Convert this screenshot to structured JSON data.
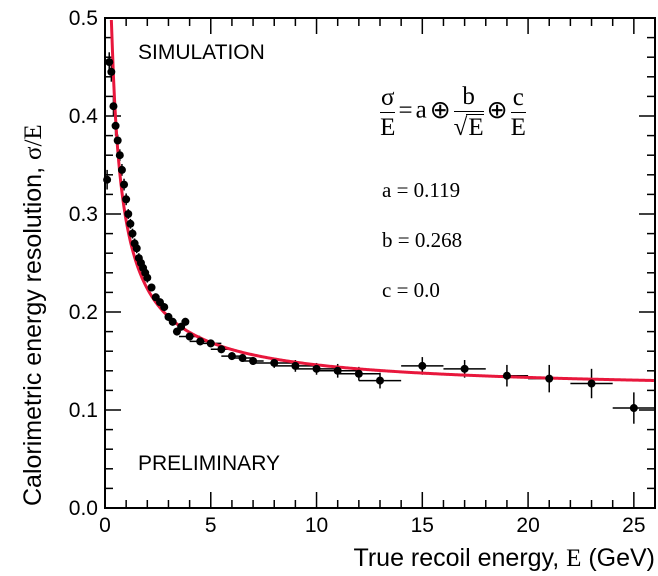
{
  "chart_data": {
    "type": "scatter",
    "xlabel_prefix": "True recoil energy, ",
    "xlabel_symbol": "E",
    "xlabel_unit": " (GeV)",
    "ylabel_prefix": "Calorimetric energy resolution, ",
    "ylabel_symbol": "σ/E",
    "xlim": [
      0,
      26
    ],
    "ylim": [
      0.0,
      0.5
    ],
    "x_ticks": [
      "0",
      "5",
      "10",
      "15",
      "20",
      "25"
    ],
    "y_ticks": [
      "0.0",
      "0.1",
      "0.2",
      "0.3",
      "0.4",
      "0.5"
    ],
    "grid": false,
    "annotations": {
      "top_label": "SIMULATION",
      "bottom_label": "PRELIMINARY",
      "formula": {
        "lhs_num": "σ",
        "lhs_den": "E",
        "equals": "=",
        "term_a": "a",
        "oplus": "⊕",
        "b_num": "b",
        "b_den": "E",
        "c_num": "c",
        "c_den": "E"
      },
      "param_a": "a = 0.119",
      "param_b": "b = 0.268",
      "param_c": "c = 0.0"
    },
    "series": [
      {
        "x": [
          0.1,
          0.2,
          0.3,
          0.4,
          0.5,
          0.6,
          0.7,
          0.8,
          0.9,
          1.0,
          1.1,
          1.2,
          1.3,
          1.4,
          1.5,
          1.6,
          1.7,
          1.8,
          1.9,
          2.0,
          2.2,
          2.4,
          2.6,
          2.8,
          3.0,
          3.2,
          3.4,
          3.6,
          3.8,
          4.0,
          4.5,
          5.0,
          5.5,
          6.0,
          6.5,
          7.0,
          8.0,
          9.0,
          10.0,
          11.0,
          12.0,
          13.0,
          15.0,
          17.0,
          19.0,
          21.0,
          23.0,
          25.0
        ],
        "y": [
          0.335,
          0.455,
          0.445,
          0.41,
          0.39,
          0.375,
          0.36,
          0.345,
          0.33,
          0.315,
          0.3,
          0.29,
          0.28,
          0.27,
          0.265,
          0.255,
          0.25,
          0.245,
          0.24,
          0.235,
          0.225,
          0.215,
          0.21,
          0.205,
          0.195,
          0.19,
          0.18,
          0.185,
          0.19,
          0.175,
          0.17,
          0.168,
          0.162,
          0.155,
          0.153,
          0.15,
          0.148,
          0.145,
          0.142,
          0.14,
          0.137,
          0.13,
          0.145,
          0.142,
          0.135,
          0.132,
          0.127,
          0.102
        ],
        "yerr": [
          0.01,
          0.01,
          0.01,
          0.01,
          0.01,
          0.006,
          0.006,
          0.006,
          0.006,
          0.006,
          0.005,
          0.005,
          0.005,
          0.005,
          0.005,
          0.005,
          0.005,
          0.005,
          0.005,
          0.005,
          0.004,
          0.004,
          0.004,
          0.004,
          0.004,
          0.004,
          0.004,
          0.004,
          0.004,
          0.004,
          0.004,
          0.004,
          0.004,
          0.004,
          0.004,
          0.004,
          0.005,
          0.006,
          0.006,
          0.007,
          0.007,
          0.008,
          0.009,
          0.009,
          0.011,
          0.014,
          0.015,
          0.016
        ]
      }
    ],
    "fit": {
      "a": 0.119,
      "b": 0.268,
      "c": 0.0,
      "color": "#e8173c"
    },
    "colors": {
      "points": "#000000",
      "fit": "#e8173c",
      "axes": "#000000"
    }
  }
}
